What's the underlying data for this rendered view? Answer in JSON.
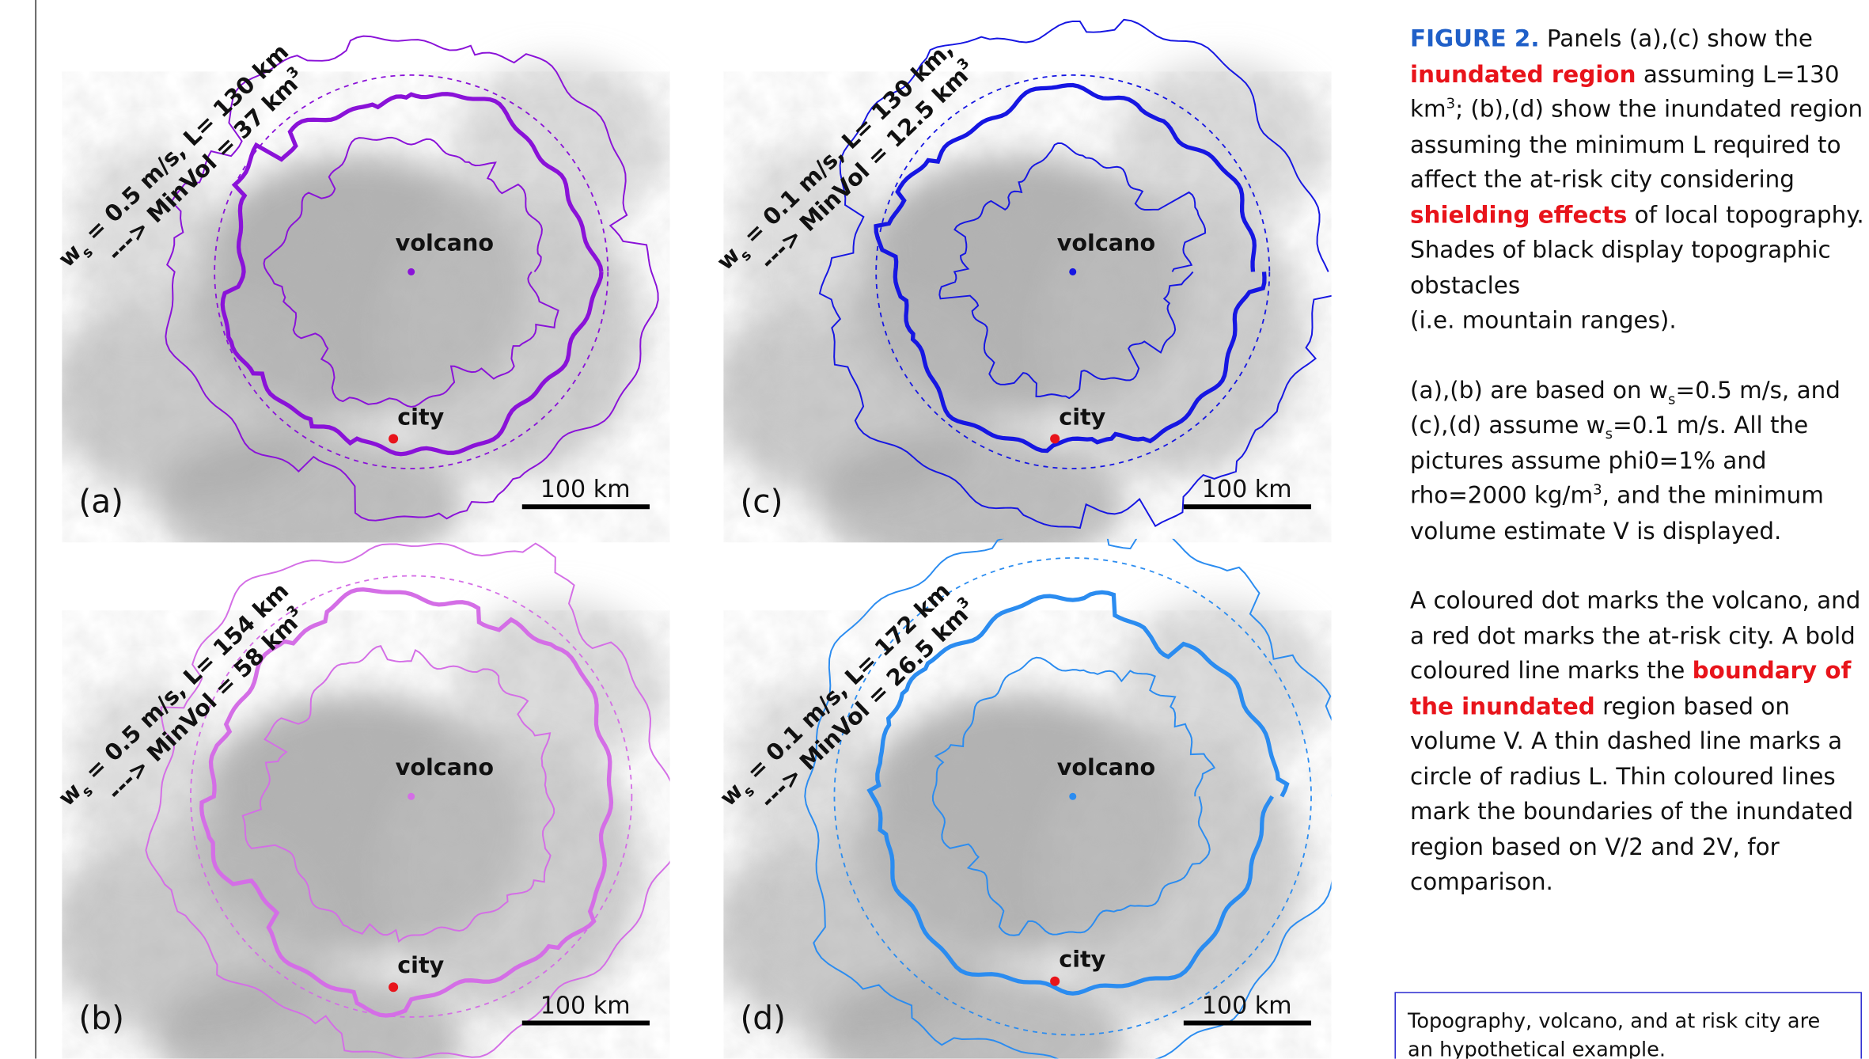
{
  "panels": [
    {
      "label": "(a)",
      "annotation": {
        "symbol": "w",
        "subscript": "s",
        "line1": " = 0.5 m/s, L= 130 km",
        "line2": "---> MinVol = 37 km",
        "superscript": "3"
      },
      "volcano": "volcano",
      "city": "city",
      "scale": "100 km"
    },
    {
      "label": "(b)",
      "annotation": {
        "symbol": "w",
        "subscript": "s",
        "line1": " = 0.5 m/s, L= 154 km",
        "line2": "---> MinVol = 58 km",
        "superscript": "3"
      },
      "volcano": "volcano",
      "city": "city",
      "scale": "100 km"
    },
    {
      "label": "(c)",
      "annotation": {
        "symbol": "w",
        "subscript": "s",
        "line1": " = 0.1 m/s, L= 130 km,",
        "line2": "---> MinVol = 12.5 km",
        "superscript": "3"
      },
      "volcano": "volcano",
      "city": "city",
      "scale": "100 km"
    },
    {
      "label": "(d)",
      "annotation": {
        "symbol": "w",
        "subscript": "s",
        "line1": " = 0.1 m/s, L= 172 km",
        "line2": "---> MinVol = 26.5 km",
        "superscript": "3"
      },
      "volcano": "volcano",
      "city": "city",
      "scale": "100 km"
    }
  ],
  "caption": [
    [
      {
        "text": "FIGURE 2.",
        "style": "figure"
      },
      {
        "text": " Panels (a),(c) show the "
      },
      {
        "text": "inundated region",
        "style": "red"
      },
      {
        "text": " assuming L=130 km"
      },
      {
        "text": "3",
        "style": "sup"
      },
      {
        "text": "; (b),(d) show the inundated region assuming the minimum L required to affect the at-risk city considering "
      },
      {
        "text": "shielding effects",
        "style": "red"
      },
      {
        "text": " of local topography. Shades of black display topographic obstacles"
      },
      {
        "text": "(i.e. mountain ranges).",
        "style": "newline"
      }
    ],
    [
      {
        "text": "(a),(b) are based on w"
      },
      {
        "text": "s",
        "style": "sub"
      },
      {
        "text": "=0.5 m/s, and (c),(d) assume w"
      },
      {
        "text": "s",
        "style": "sub"
      },
      {
        "text": "=0.1 m/s. All the pictures  assume phi0=1% and rho=2000 kg/m"
      },
      {
        "text": "3",
        "style": "sup"
      },
      {
        "text": ", and the minimum volume estimate V is displayed."
      }
    ],
    [
      {
        "text": "A coloured dot marks the volcano, and a red dot marks the at-risk city. A bold coloured line marks the "
      },
      {
        "text": "boundary of the inundated",
        "style": "red"
      },
      {
        "text": " region based on volume V. A thin dashed line marks a circle of radius L. Thin coloured lines mark the boundaries of the inundated region based on V/2 and 2V, for comparison."
      }
    ]
  ],
  "note": "Topography, volcano, and at risk city are an hypothetical example."
}
